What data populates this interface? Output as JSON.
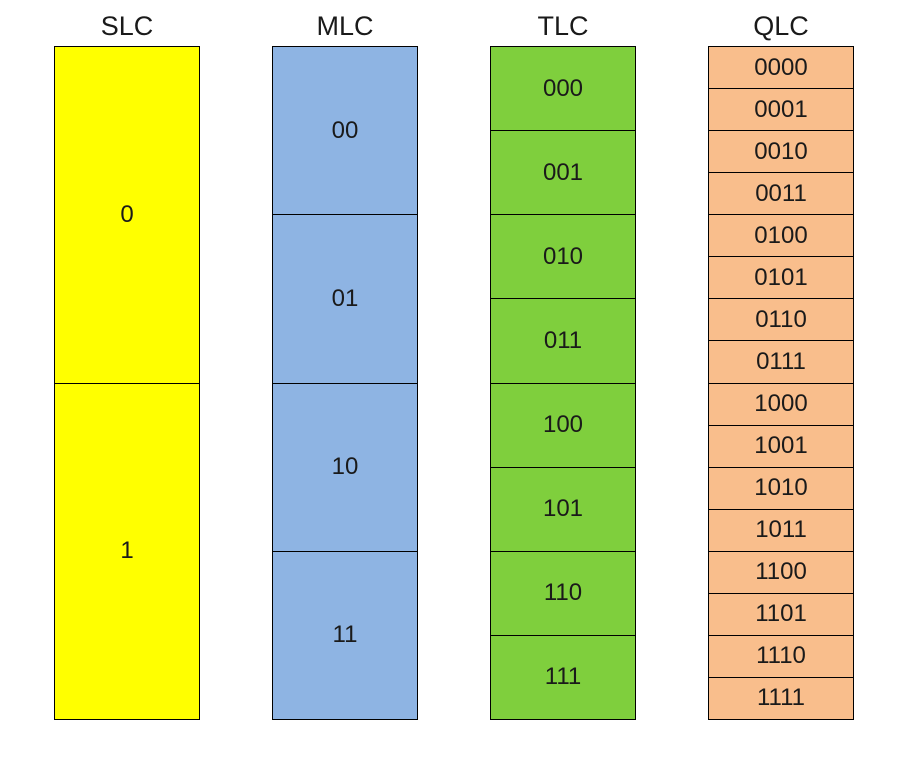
{
  "columns": [
    {
      "title": "SLC",
      "color": "#ffff00",
      "cells": [
        "0",
        "1"
      ]
    },
    {
      "title": "MLC",
      "color": "#8eb4e3",
      "cells": [
        "00",
        "01",
        "10",
        "11"
      ]
    },
    {
      "title": "TLC",
      "color": "#7fcf3d",
      "cells": [
        "000",
        "001",
        "010",
        "011",
        "100",
        "101",
        "110",
        "111"
      ]
    },
    {
      "title": "QLC",
      "color": "#f9be8c",
      "cells": [
        "0000",
        "0001",
        "0010",
        "0011",
        "0100",
        "0101",
        "0110",
        "0111",
        "1000",
        "1001",
        "1010",
        "1011",
        "1100",
        "1101",
        "1110",
        "1111"
      ]
    }
  ]
}
